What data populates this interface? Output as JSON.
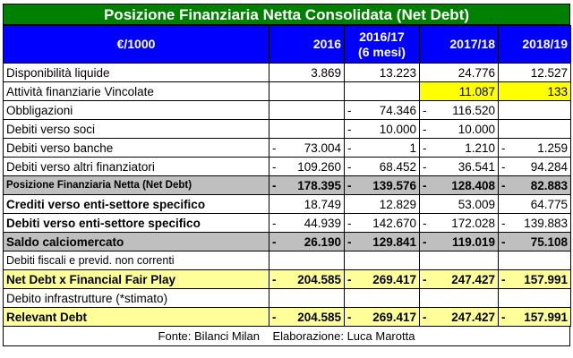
{
  "title": "Posizione Finanziaria Netta Consolidata (Net Debt)",
  "header": {
    "label": "€/1000",
    "col1": "2016",
    "col2_line1": "2016/17",
    "col2_line2": "(6 mesi)",
    "col3": "2017/18",
    "col4": "2018/19"
  },
  "rows": [
    {
      "label": "Disponibilità liquide",
      "c1": {
        "s": "",
        "v": "3.869"
      },
      "c2": {
        "s": "",
        "v": "13.223"
      },
      "c3": {
        "s": "",
        "v": "24.776"
      },
      "c4": {
        "s": "",
        "v": "12.527"
      }
    },
    {
      "label": "Attività finanziarie Vincolate",
      "c1": {
        "s": "",
        "v": ""
      },
      "c2": {
        "s": "",
        "v": ""
      },
      "c3": {
        "s": "",
        "v": "11.087"
      },
      "c4": {
        "s": "",
        "v": "133"
      }
    },
    {
      "label": "Obbligazioni",
      "c1": {
        "s": "",
        "v": ""
      },
      "c2": {
        "s": "-",
        "v": "74.346"
      },
      "c3": {
        "s": "-",
        "v": "116.520"
      },
      "c4": {
        "s": "",
        "v": ""
      }
    },
    {
      "label": "Debiti verso soci",
      "c1": {
        "s": "",
        "v": ""
      },
      "c2": {
        "s": "-",
        "v": "10.000"
      },
      "c3": {
        "s": "-",
        "v": "10.000"
      },
      "c4": {
        "s": "",
        "v": ""
      }
    },
    {
      "label": "Debiti verso banche",
      "c1": {
        "s": "-",
        "v": "73.004"
      },
      "c2": {
        "s": "-",
        "v": "1"
      },
      "c3": {
        "s": "-",
        "v": "1.210"
      },
      "c4": {
        "s": "-",
        "v": "1.259"
      }
    },
    {
      "label": "Debiti verso altri finanziatori",
      "c1": {
        "s": "-",
        "v": "109.260"
      },
      "c2": {
        "s": "-",
        "v": "68.452"
      },
      "c3": {
        "s": "-",
        "v": "36.541"
      },
      "c4": {
        "s": "-",
        "v": "94.284"
      }
    },
    {
      "label": "Posizione Finanziaria Netta (Net Debt)",
      "c1": {
        "s": "-",
        "v": "178.395"
      },
      "c2": {
        "s": "-",
        "v": "139.576"
      },
      "c3": {
        "s": "-",
        "v": "128.408"
      },
      "c4": {
        "s": "-",
        "v": "82.883"
      }
    },
    {
      "label": "Crediti verso enti-settore specifico",
      "c1": {
        "s": "",
        "v": "18.749"
      },
      "c2": {
        "s": "",
        "v": "12.829"
      },
      "c3": {
        "s": "",
        "v": "53.009"
      },
      "c4": {
        "s": "",
        "v": "64.775"
      }
    },
    {
      "label": "Debiti verso enti-settore specifico",
      "c1": {
        "s": "-",
        "v": "44.939"
      },
      "c2": {
        "s": "-",
        "v": "142.670"
      },
      "c3": {
        "s": "-",
        "v": "172.028"
      },
      "c4": {
        "s": "-",
        "v": "139.883"
      }
    },
    {
      "label": "Saldo calciomercato",
      "c1": {
        "s": "-",
        "v": "26.190"
      },
      "c2": {
        "s": "-",
        "v": "129.841"
      },
      "c3": {
        "s": "-",
        "v": "119.019"
      },
      "c4": {
        "s": "-",
        "v": "75.108"
      }
    },
    {
      "label": "Debiti fiscali e previd. non correnti",
      "c1": {
        "s": "",
        "v": ""
      },
      "c2": {
        "s": "",
        "v": ""
      },
      "c3": {
        "s": "",
        "v": ""
      },
      "c4": {
        "s": "",
        "v": ""
      }
    },
    {
      "label": "Net Debt x Financial Fair Play",
      "c1": {
        "s": "-",
        "v": "204.585"
      },
      "c2": {
        "s": "-",
        "v": "269.417"
      },
      "c3": {
        "s": "-",
        "v": "247.427"
      },
      "c4": {
        "s": "-",
        "v": "157.991"
      }
    },
    {
      "label": "Debito infrastrutture (*stimato)",
      "c1": {
        "s": "",
        "v": ""
      },
      "c2": {
        "s": "",
        "v": ""
      },
      "c3": {
        "s": "",
        "v": ""
      },
      "c4": {
        "s": "",
        "v": ""
      }
    },
    {
      "label": "Relevant Debt",
      "c1": {
        "s": "-",
        "v": "204.585"
      },
      "c2": {
        "s": "-",
        "v": "269.417"
      },
      "c3": {
        "s": "-",
        "v": "247.427"
      },
      "c4": {
        "s": "-",
        "v": "157.991"
      }
    }
  ],
  "footer": {
    "source": "Fonte: Bilanci Milan",
    "elaboration": "Elaborazione: Luca Marotta"
  },
  "colors": {
    "title_bg": "#008000",
    "header_bg": "#0000ff",
    "highlight_yellow": "#ffff00",
    "net_debt_gray": "#bfbfbf",
    "total_light_yellow": "#ffff99"
  }
}
